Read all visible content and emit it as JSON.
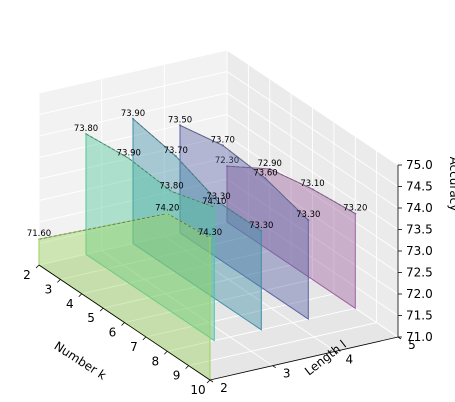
{
  "chart_data": {
    "type": "area",
    "projection": "3d",
    "xlabel": "Number k",
    "ylabel": "Length l",
    "zlabel": "Accuracy",
    "x_ticks": [
      "2",
      "3",
      "4",
      "5",
      "6",
      "7",
      "8",
      "9",
      "10"
    ],
    "y_ticks": [
      "2",
      "3",
      "4",
      "5"
    ],
    "z_ticks": [
      "71.0",
      "71.5",
      "72.0",
      "72.5",
      "73.0",
      "73.5",
      "74.0",
      "74.5",
      "75.0"
    ],
    "xlim": [
      2,
      10
    ],
    "ylim": [
      2,
      5
    ],
    "zlim": [
      71,
      75
    ],
    "grid": true,
    "x": [
      2,
      4,
      6,
      8,
      10
    ],
    "series": [
      {
        "color": "#9b5e9e",
        "values": [
          72.3,
          72.9,
          73.1,
          73.2,
          null
        ],
        "labels": [
          "72.30",
          "72.90",
          "73.10",
          "73.20",
          ""
        ]
      },
      {
        "color": "#5a63a6",
        "values": [
          73.5,
          73.7,
          73.6,
          73.3,
          null
        ],
        "labels": [
          "73.50",
          "73.70",
          "73.60",
          "73.30",
          ""
        ]
      },
      {
        "color": "#3f8ea8",
        "values": [
          73.9,
          73.7,
          73.3,
          73.3,
          null
        ],
        "labels": [
          "73.90",
          "73.70",
          "73.30",
          "73.30",
          ""
        ]
      },
      {
        "color": "#4fc69a",
        "values": [
          73.8,
          73.9,
          73.8,
          74.1,
          null
        ],
        "labels": [
          "73.80",
          "73.90",
          "73.80",
          "74.10",
          ""
        ]
      },
      {
        "color": "#9ad35a",
        "values": [
          71.6,
          null,
          null,
          74.2,
          74.3
        ],
        "labels": [
          "71.60",
          "",
          "",
          "74.20",
          "74.30"
        ]
      }
    ]
  }
}
